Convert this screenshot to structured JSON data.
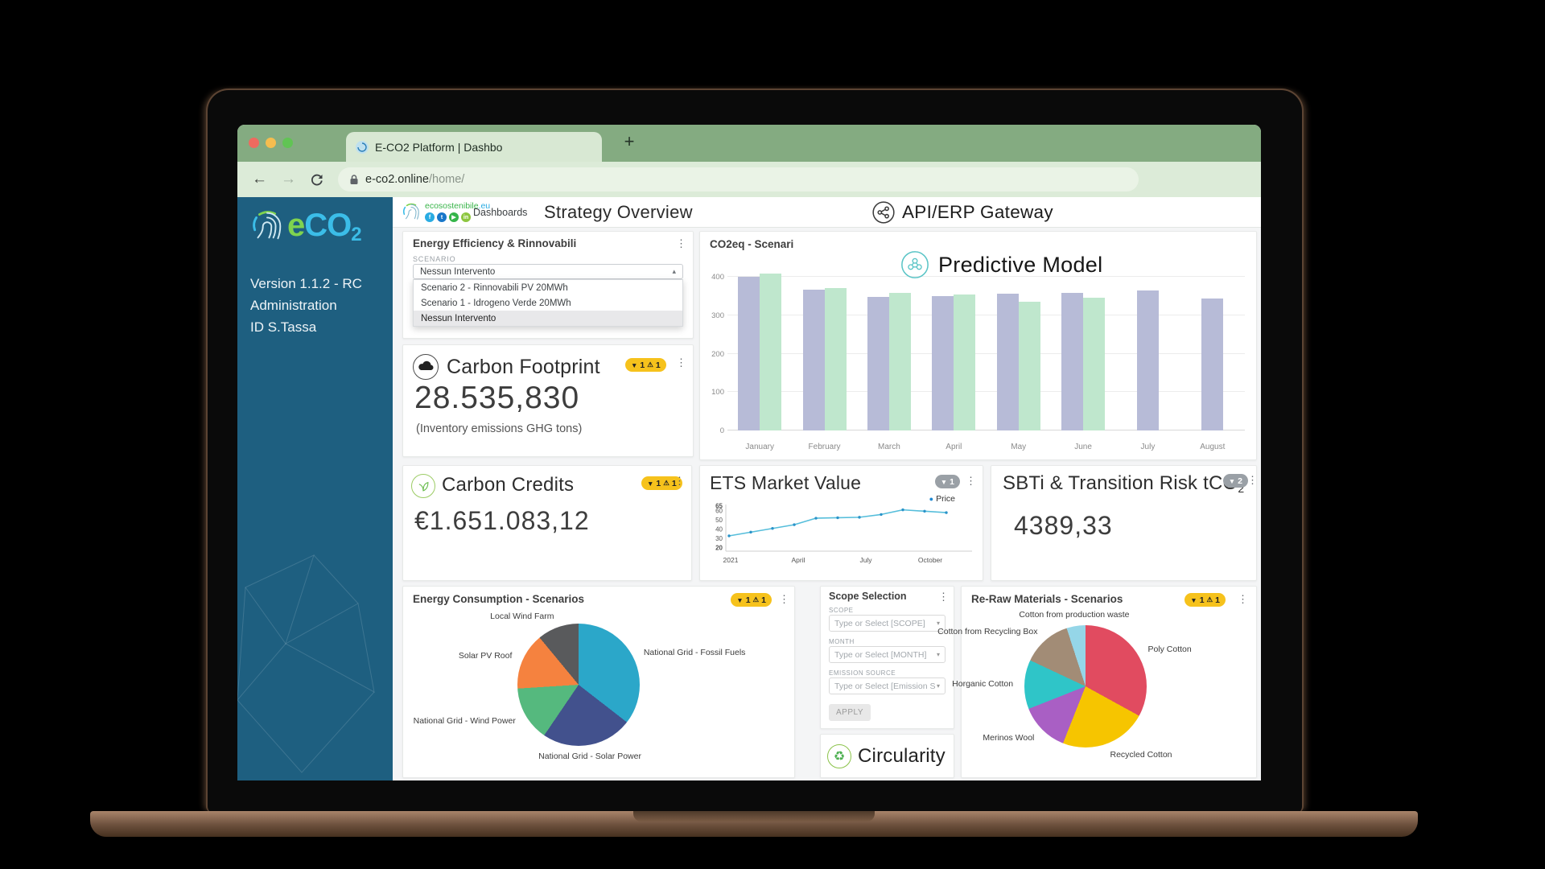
{
  "icons": {
    "kebab": "⋮",
    "filter": "▼",
    "warning": "⚠",
    "back": "←",
    "forward": "→",
    "plus": "+",
    "caret_up": "▴",
    "caret_down": "▾",
    "recycle": "♻",
    "dot": "●",
    "social": [
      "f",
      "t",
      "▶",
      "in"
    ]
  },
  "browser": {
    "tab_title": "E-CO2 Platform | Dashbo",
    "url_domain": "e-co2.online",
    "url_path": "/home/"
  },
  "sidebar": {
    "logo_e": "e",
    "logo_co": "CO",
    "logo_sub": "2",
    "version": "Version 1.1.2 - RC",
    "role": "Administration",
    "user_id": "ID S.Tassa"
  },
  "header": {
    "site_name": "ecosostenibile",
    "site_tld": ".eu",
    "nav_dashboards": "Dashboards",
    "page_title": "Strategy Overview",
    "gateway_label": "API/ERP Gateway",
    "predictive_label": "Predictive Model"
  },
  "cards": {
    "energy_efficiency": {
      "title": "Energy Efficiency & Rinnovabili",
      "scenario_label": "SCENARIO",
      "selected": "Nessun Intervento",
      "options": [
        "Scenario 2 - Rinnovabili PV 20MWh",
        "Scenario 1 - Idrogeno Verde 20MWh",
        "Nessun Intervento"
      ]
    },
    "carbon_footprint": {
      "title": "Carbon Footprint",
      "filter_count": "1",
      "warning_count": "1",
      "value": "28.535,830",
      "subtitle": "(Inventory emissions GHG tons)"
    },
    "carbon_credits": {
      "title": "Carbon Credits",
      "filter_count": "1",
      "warning_count": "1",
      "value": "€1.651.083,12"
    },
    "ets": {
      "filter_count": "1"
    },
    "sbti": {
      "title": "SBTi & Transition Risk tCO",
      "title_sub": "2",
      "filter_count": "2",
      "value": "4389,33"
    },
    "energy_consumption": {
      "filter_count": "1",
      "warning_count": "1"
    },
    "scope": {
      "title": "Scope Selection",
      "scope_label": "SCOPE",
      "scope_placeholder": "Type or Select [SCOPE]",
      "month_label": "MONTH",
      "month_placeholder": "Type or Select [MONTH]",
      "emission_label": "EMISSION SOURCE",
      "emission_placeholder": "Type or Select [Emission S",
      "apply_label": "APPLY"
    },
    "circularity": {
      "label": "Circularity"
    },
    "re_raw": {
      "filter_count": "1",
      "warning_count": "1"
    }
  },
  "chart_data": [
    {
      "id": "co2eq",
      "type": "bar",
      "title": "CO2eq - Scenari",
      "categories": [
        "January",
        "February",
        "March",
        "April",
        "May",
        "June",
        "July",
        "August"
      ],
      "series": [
        {
          "name": "series-lavender",
          "color": "#b7bbd7",
          "values": [
            400,
            367,
            349,
            351,
            356,
            359,
            364,
            345
          ]
        },
        {
          "name": "series-green",
          "color": "#bfe7cd",
          "values": [
            410,
            372,
            359,
            354,
            336,
            346,
            null,
            null
          ]
        }
      ],
      "yticks": [
        0,
        100,
        200,
        300,
        400
      ],
      "ylim": [
        0,
        430
      ],
      "grid": true,
      "legend_position": "none"
    },
    {
      "id": "ets",
      "type": "line",
      "title": "ETS Market Value",
      "legend": [
        "Price"
      ],
      "legend_color": "#1e88d2",
      "color": "#56bedb",
      "point_color": "#2a93c9",
      "x_ticks": [
        "2021",
        "April",
        "July",
        "October"
      ],
      "yticks": [
        20,
        30,
        40,
        50,
        60,
        65
      ],
      "ylim": [
        20,
        65
      ],
      "values": [
        33,
        37,
        41,
        45,
        52,
        52.5,
        53,
        56,
        61,
        59.5,
        58
      ]
    },
    {
      "id": "energy",
      "type": "pie",
      "title": "Energy Consumption - Scenarios",
      "slices": [
        {
          "label": "National Grid - Fossil Fuels",
          "value": 35.5,
          "color": "#2ba7c9"
        },
        {
          "label": "National Grid - Solar Power",
          "value": 24,
          "color": "#42518d"
        },
        {
          "label": "National Grid - Wind Power",
          "value": 14.5,
          "color": "#55b97e"
        },
        {
          "label": "Solar PV Roof",
          "value": 15,
          "color": "#f5823f"
        },
        {
          "label": "Local Wind Farm",
          "value": 11,
          "color": "#595a5c"
        }
      ]
    },
    {
      "id": "reraw",
      "type": "pie",
      "title": "Re-Raw Materials - Scenarios",
      "slices": [
        {
          "label": "Poly Cotton",
          "value": 33,
          "color": "#e14b60"
        },
        {
          "label": "Recycled Cotton",
          "value": 23,
          "color": "#f6c500"
        },
        {
          "label": "Merinos Wool",
          "value": 13,
          "color": "#a95fc4"
        },
        {
          "label": "Horganic Cotton",
          "value": 13,
          "color": "#2fc5c8"
        },
        {
          "label": "Cotton from Recycling Box",
          "value": 13,
          "color": "#a28c76"
        },
        {
          "label": "Cotton from production waste",
          "value": 5,
          "color": "#95d6e8"
        }
      ]
    }
  ]
}
